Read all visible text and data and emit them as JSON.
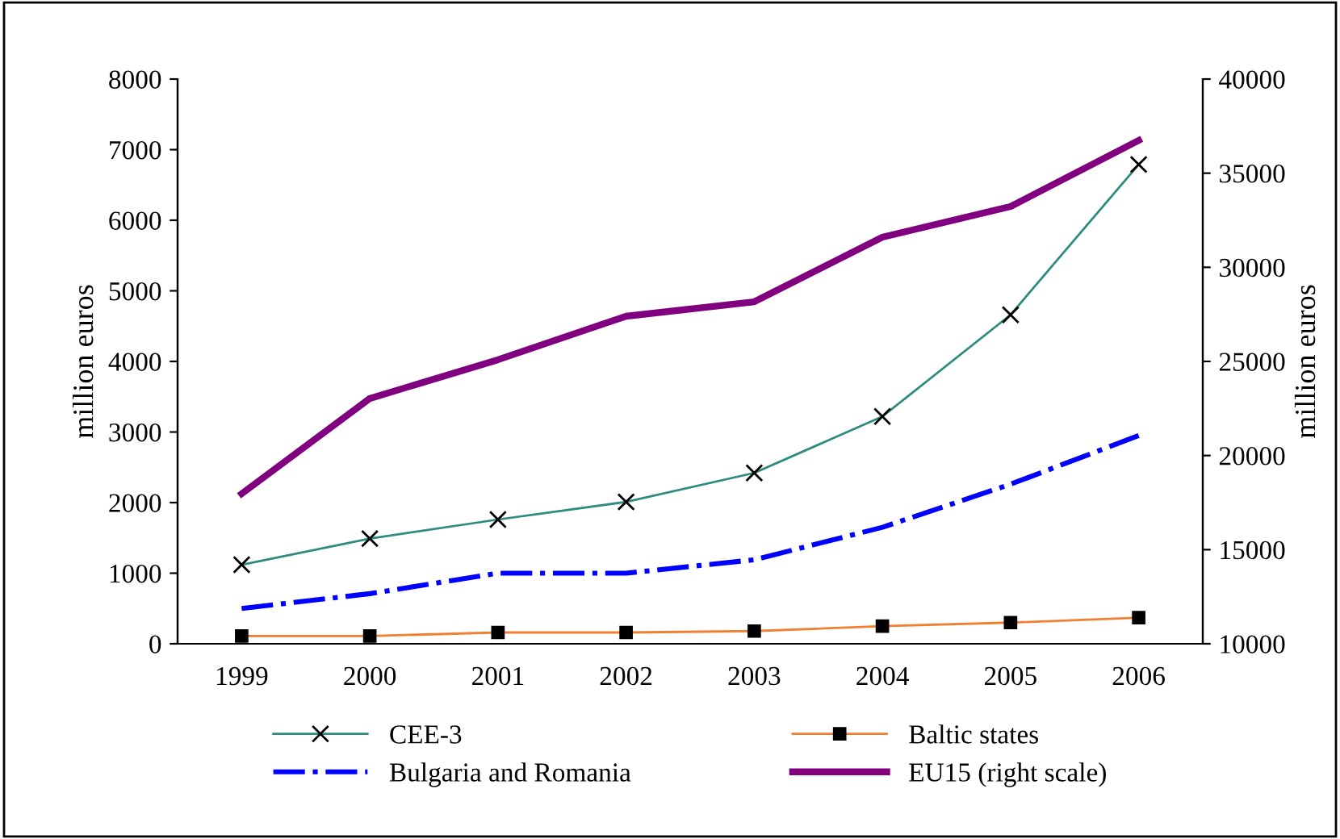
{
  "chart_data": {
    "type": "line",
    "ylabel": "million euros",
    "y2label": "million euros",
    "categories": [
      "1999",
      "2000",
      "2001",
      "2002",
      "2003",
      "2004",
      "2005",
      "2006"
    ],
    "ylim": [
      0,
      8000
    ],
    "yticks": [
      0,
      1000,
      2000,
      3000,
      4000,
      5000,
      6000,
      7000,
      8000
    ],
    "y2lim": [
      10000,
      40000
    ],
    "y2ticks": [
      10000,
      15000,
      20000,
      25000,
      30000,
      35000,
      40000
    ],
    "grid": false,
    "legend": "bottom",
    "series": [
      {
        "name": "CEE-3",
        "color": "#2e8b7f",
        "marker": "cross",
        "line_style": "solid",
        "values": [
          1120,
          1490,
          1760,
          2010,
          2420,
          3220,
          4660,
          6790
        ]
      },
      {
        "name": "Baltic states",
        "color": "#f07f30",
        "marker": "square",
        "line_style": "solid",
        "values": [
          110,
          110,
          160,
          160,
          180,
          250,
          300,
          370
        ]
      },
      {
        "name": "Bulgaria and Romania",
        "color": "#0000ff",
        "marker": "none",
        "line_style": "dashdot",
        "values": [
          500,
          710,
          1000,
          1000,
          1190,
          1650,
          2260,
          2950
        ]
      },
      {
        "name": "EU15 (right scale)",
        "color": "#800080",
        "marker": "none",
        "line_style": "solid",
        "axis": "y2",
        "values": [
          17970,
          23030,
          25090,
          27400,
          28170,
          31600,
          33230,
          36740
        ]
      }
    ]
  }
}
